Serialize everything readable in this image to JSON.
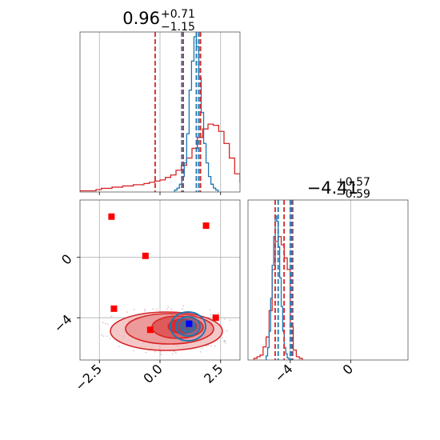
{
  "chart_data": {
    "type": "corner",
    "grid": true,
    "colors": {
      "red": "#d62728",
      "blue": "#1f77b4",
      "marker_red": "#ff0000",
      "marker_blue": "#0000ff"
    },
    "titles": [
      {
        "value": "0.96",
        "plus": "+0.71",
        "minus": "−1.15"
      },
      {
        "value": "−4.41",
        "plus": "+0.57",
        "minus": "−0.59"
      }
    ],
    "x_ticks": {
      "param1": [
        {
          "value": -2.5,
          "label": "−2.5"
        },
        {
          "value": 0.0,
          "label": "0.0"
        },
        {
          "value": 2.5,
          "label": "2.5"
        }
      ],
      "param2": [
        {
          "value": -4,
          "label": "−4"
        },
        {
          "value": 0,
          "label": "0"
        }
      ]
    },
    "y_ticks": {
      "param2": [
        {
          "value": 0,
          "label": "0"
        },
        {
          "value": -4,
          "label": "−4"
        }
      ]
    },
    "xlim": {
      "param1": [
        -3.3,
        3.3
      ],
      "param2": [
        -6.8,
        3.8
      ]
    },
    "ylim": {
      "param2": [
        -6.8,
        3.8
      ]
    },
    "hist_param1": {
      "red": {
        "edges_start": -3.3,
        "bin": 0.22,
        "values": [
          1,
          1,
          1,
          2,
          3,
          3,
          4,
          4,
          5,
          5,
          6,
          6,
          7,
          8,
          9,
          10,
          12,
          14,
          18,
          22,
          28,
          36,
          45,
          52,
          56,
          55,
          50,
          40,
          28,
          15,
          8,
          4,
          2,
          1,
          0,
          0,
          0
        ]
      },
      "blue": {
        "edges_start": 0.6,
        "bin": 0.1,
        "values": [
          2,
          4,
          8,
          16,
          30,
          60,
          105,
          135,
          160,
          150,
          118,
          82,
          50,
          30,
          16,
          8,
          4,
          2
        ]
      },
      "red_quantiles": [
        -0.2,
        0.96,
        1.67
      ],
      "blue_quantiles": [
        0.9,
        1.5,
        1.6
      ]
    },
    "hist_param2": {
      "red": {
        "edges_start": -6.4,
        "bin": 0.2,
        "values": [
          1,
          2,
          3,
          8,
          14,
          30,
          55,
          72,
          75,
          70,
          62,
          55,
          20,
          6,
          2,
          1
        ]
      },
      "blue": {
        "edges_start": -5.6,
        "bin": 0.1,
        "values": [
          4,
          12,
          28,
          60,
          92,
          120,
          140,
          135,
          110,
          80,
          52,
          28,
          12,
          6,
          2
        ]
      },
      "red_quantiles": [
        -5.0,
        -4.41,
        -3.84
      ],
      "blue_quantiles": [
        -4.8,
        -4.0,
        -3.9
      ]
    },
    "scatter_red_squares": [
      {
        "x": -2.0,
        "y": 2.7
      },
      {
        "x": -0.6,
        "y": 0.1
      },
      {
        "x": 1.9,
        "y": 2.1
      },
      {
        "x": -1.9,
        "y": -3.4
      },
      {
        "x": -0.4,
        "y": -4.8
      },
      {
        "x": 2.3,
        "y": -4.0
      }
    ],
    "scatter_blue_squares": [
      {
        "x": 1.2,
        "y": -4.4
      }
    ]
  }
}
